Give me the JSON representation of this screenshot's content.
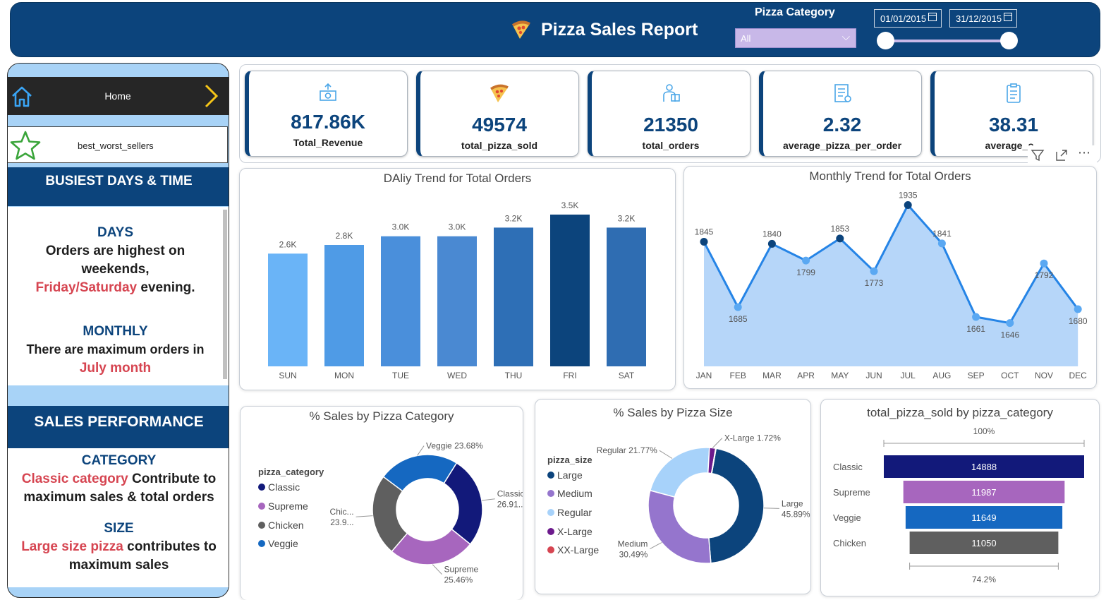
{
  "header": {
    "title": "Pizza Sales Report",
    "category_label": "Pizza Category",
    "category_value": "All",
    "date_from": "01/01/2015",
    "date_to": "31/12/2015"
  },
  "sidebar": {
    "home_label": "Home",
    "best_worst_label": "best_worst_sellers",
    "busiest_heading": "BUSIEST DAYS & TIME",
    "days_heading": "DAYS",
    "days_line1": "Orders are highest on",
    "days_line2": "weekends,",
    "days_highlight": "Friday/Saturday",
    "days_tail": " evening.",
    "monthly_heading": "MONTHLY",
    "monthly_line1": "There are maximum orders in",
    "monthly_highlight": "July month",
    "sales_heading": "SALES PERFORMANCE",
    "category_heading": "CATEGORY",
    "category_highlight": "Classic category",
    "category_tail": " Contribute to",
    "category_line2": "maximum sales & total orders",
    "size_heading": "SIZE",
    "size_highlight": "Large size pizza",
    "size_tail": " contributes to",
    "size_line2": "maximum sales"
  },
  "kpis": [
    {
      "value": "817.86K",
      "label": "Total_Revenue",
      "icon": "money-icon"
    },
    {
      "value": "49574",
      "label": "total_pizza_sold",
      "icon": "pizza-slice-icon"
    },
    {
      "value": "21350",
      "label": "total_orders",
      "icon": "delivery-person-icon"
    },
    {
      "value": "2.32",
      "label": "average_pizza_per_order",
      "icon": "order-list-icon"
    },
    {
      "value": "38.31",
      "label": "average_o...",
      "icon": "clipboard-icon"
    }
  ],
  "colors": {
    "navy": "#0c447c",
    "sidebar_bg": "#a8d3f7",
    "red_text": "#d64551",
    "area_fill": "#a9cff8",
    "line": "#2584e6"
  },
  "chart_data": [
    {
      "type": "bar",
      "title": "DAliy Trend for Total Orders",
      "categories": [
        "SUN",
        "MON",
        "TUE",
        "WED",
        "THU",
        "FRI",
        "SAT"
      ],
      "values": [
        2.6,
        2.8,
        3.0,
        3.0,
        3.2,
        3.5,
        3.2
      ],
      "labels": [
        "2.6K",
        "2.8K",
        "3.0K",
        "3.0K",
        "3.2K",
        "3.5K",
        "3.2K"
      ],
      "colors": [
        "#6ab4f7",
        "#4f9be6",
        "#4a8fdb",
        "#4a89d2",
        "#2e6fb6",
        "#0c447c",
        "#2f6db2"
      ],
      "ylim": [
        0,
        3.5
      ]
    },
    {
      "type": "area",
      "title": "Monthly Trend for Total Orders",
      "categories": [
        "JAN",
        "FEB",
        "MAR",
        "APR",
        "MAY",
        "JUN",
        "JUL",
        "AUG",
        "SEP",
        "OCT",
        "NOV",
        "DEC"
      ],
      "values": [
        1845,
        1685,
        1840,
        1799,
        1853,
        1773,
        1935,
        1841,
        1661,
        1646,
        1792,
        1680
      ],
      "ylim": [
        1540,
        1960
      ]
    },
    {
      "type": "pie",
      "title": "% Sales by Pizza Category",
      "legend_title": "pizza_category",
      "slices": [
        {
          "name": "Classic",
          "value": 26.91,
          "label": "Classic 26.91...",
          "color": "#12197a"
        },
        {
          "name": "Supreme",
          "value": 25.46,
          "label": "Supreme 25.46%",
          "color": "#a766be"
        },
        {
          "name": "Chicken",
          "value": 23.95,
          "label": "Chic... 23.9...",
          "color": "#5f5f5f"
        },
        {
          "name": "Veggie",
          "value": 23.68,
          "label": "Veggie 23.68%",
          "color": "#1568c1"
        }
      ]
    },
    {
      "type": "pie",
      "title": "% Sales by Pizza Size",
      "legend_title": "pizza_size",
      "legend": [
        {
          "name": "Large",
          "color": "#0c447c"
        },
        {
          "name": "Medium",
          "color": "#9575cd"
        },
        {
          "name": "Regular",
          "color": "#a7d2fa"
        },
        {
          "name": "X-Large",
          "color": "#6c1a8c"
        },
        {
          "name": "XX-Large",
          "color": "#d64551"
        }
      ],
      "slices": [
        {
          "name": "Large",
          "value": 45.89,
          "label": "Large 45.89%",
          "color": "#0c447c"
        },
        {
          "name": "Medium",
          "value": 30.49,
          "label": "Medium 30.49%",
          "color": "#9575cd"
        },
        {
          "name": "Regular",
          "value": 21.77,
          "label": "Regular 21.77%",
          "color": "#a7d2fa"
        },
        {
          "name": "X-Large",
          "value": 1.72,
          "label": "X-Large 1.72%",
          "color": "#6c1a8c"
        },
        {
          "name": "XX-Large",
          "value": 0.12,
          "label": "",
          "color": "#d64551"
        }
      ]
    },
    {
      "type": "bar",
      "title": "total_pizza_sold by pizza_category",
      "orientation": "funnel",
      "categories": [
        "Classic",
        "Supreme",
        "Veggie",
        "Chicken"
      ],
      "values": [
        14888,
        11987,
        11649,
        11050
      ],
      "colors": [
        "#12197a",
        "#a766be",
        "#1568c1",
        "#5f5f5f"
      ],
      "top_percent": "100%",
      "bottom_percent": "74.2%"
    }
  ]
}
